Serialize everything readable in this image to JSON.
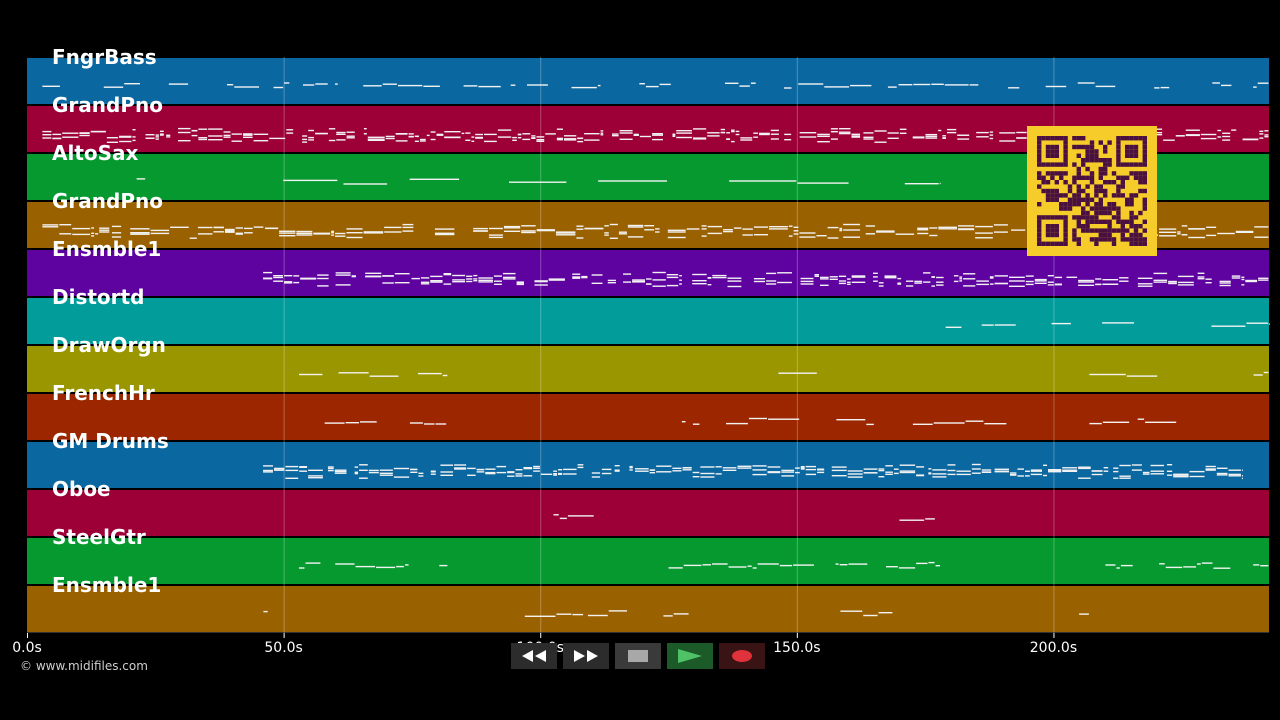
{
  "tracks": [
    {
      "name": "FngrBass",
      "color": "#0b67a0"
    },
    {
      "name": "GrandPno",
      "color": "#9c0036"
    },
    {
      "name": "AltoSax",
      "color": "#05992f"
    },
    {
      "name": "GrandPno",
      "color": "#9a6100"
    },
    {
      "name": "Ensmble1",
      "color": "#5f03a0"
    },
    {
      "name": "Distortd",
      "color": "#029c9a"
    },
    {
      "name": "DrawOrgn",
      "color": "#9a9600"
    },
    {
      "name": "FrenchHr",
      "color": "#9b2600"
    },
    {
      "name": "GM Drums",
      "color": "#0b67a0"
    },
    {
      "name": "Oboe",
      "color": "#9c0036"
    },
    {
      "name": "SteelGtr",
      "color": "#05992f"
    },
    {
      "name": "Ensmble1",
      "color": "#9a6100"
    }
  ],
  "time_axis": {
    "tick_values": [
      0,
      50,
      100,
      150,
      200
    ],
    "tick_labels": [
      "0.0s",
      "50.0s",
      "100.0s",
      "150.0s",
      "200.0s"
    ],
    "max_seconds": 242
  },
  "copyright": "© www.midifiles.com",
  "transport": {
    "rewind": "rewind-icon",
    "fast_forward": "fast-forward-icon",
    "stop": "stop-icon",
    "play": "play-icon",
    "record": "record-icon"
  },
  "qr_code": {
    "icon": "qr-code-icon",
    "color": "#f5cc2a"
  }
}
